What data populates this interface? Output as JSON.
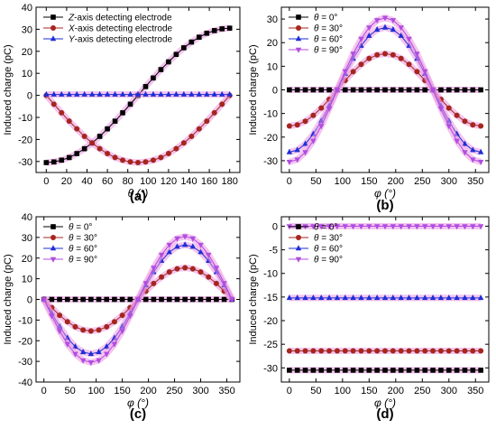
{
  "chart_data": [
    {
      "panel": "(a)",
      "type": "line",
      "xlabel": "θ (°)",
      "ylabel": "Induced charge (pC)",
      "xlim": [
        -10,
        190
      ],
      "ylim": [
        -35,
        40
      ],
      "xticks": [
        0,
        20,
        40,
        60,
        80,
        100,
        120,
        140,
        160,
        180
      ],
      "yticks": [
        -30,
        -20,
        -10,
        0,
        10,
        20,
        30,
        40
      ],
      "legend_position": "top-left",
      "grid": false,
      "x": [
        0,
        7.5,
        15,
        22.5,
        30,
        37.5,
        45,
        52.5,
        60,
        67.5,
        75,
        82.5,
        90,
        97.5,
        105,
        112.5,
        120,
        127.5,
        135,
        142.5,
        150,
        157.5,
        165,
        172.5,
        180
      ],
      "series": [
        {
          "name_prefix": "Z",
          "name_suffix": "-axis detecting electrode",
          "color": "#000000",
          "marker": "square",
          "values": [
            -30.5,
            -30.2,
            -29.4,
            -28.2,
            -26.4,
            -24.2,
            -21.6,
            -18.6,
            -15.2,
            -11.7,
            -7.9,
            -4.0,
            0.0,
            4.0,
            7.9,
            11.7,
            15.2,
            18.6,
            21.6,
            24.2,
            26.4,
            28.2,
            29.4,
            30.2,
            30.5
          ]
        },
        {
          "name_prefix": "X",
          "name_suffix": "-axis detecting electrode",
          "color": "#a5261e",
          "marker": "circle",
          "values": [
            0.0,
            -4.0,
            -7.9,
            -11.7,
            -15.2,
            -18.6,
            -21.6,
            -24.2,
            -26.4,
            -28.2,
            -29.4,
            -30.2,
            -30.5,
            -30.2,
            -29.4,
            -28.2,
            -26.4,
            -24.2,
            -21.6,
            -18.6,
            -15.2,
            -11.7,
            -7.9,
            -4.0,
            0.0
          ]
        },
        {
          "name_prefix": "Y",
          "name_suffix": "-axis detecting electrode",
          "color": "#1f2ed6",
          "marker": "triangle",
          "values": [
            0.4,
            0.4,
            0.4,
            0.4,
            0.4,
            0.4,
            0.4,
            0.4,
            0.4,
            0.4,
            0.4,
            0.4,
            0.4,
            0.4,
            0.4,
            0.4,
            0.4,
            0.4,
            0.4,
            0.4,
            0.4,
            0.4,
            0.4,
            0.4,
            0.4
          ]
        }
      ]
    },
    {
      "panel": "(b)",
      "type": "line",
      "xlabel": "φ (°)",
      "ylabel": "Induced charge (pC)",
      "xlim": [
        -15,
        375
      ],
      "ylim": [
        -35,
        35
      ],
      "xticks": [
        0,
        50,
        100,
        150,
        200,
        250,
        300,
        350
      ],
      "yticks": [
        -30,
        -20,
        -10,
        0,
        10,
        20,
        30
      ],
      "legend_position": "top-left",
      "grid": false,
      "x": [
        0,
        15,
        30,
        45,
        60,
        75,
        90,
        105,
        120,
        135,
        150,
        165,
        180,
        195,
        210,
        225,
        240,
        255,
        270,
        285,
        300,
        315,
        330,
        345,
        360
      ],
      "series": [
        {
          "name_prefix": "θ",
          "name_suffix": " = 0°",
          "color": "#000000",
          "marker": "square",
          "values": [
            0,
            0,
            0,
            0,
            0,
            0,
            0,
            0,
            0,
            0,
            0,
            0,
            0,
            0,
            0,
            0,
            0,
            0,
            0,
            0,
            0,
            0,
            0,
            0,
            0
          ]
        },
        {
          "name_prefix": "θ",
          "name_suffix": " = 30°",
          "color": "#a5261e",
          "marker": "circle",
          "values": [
            -15.3,
            -14.8,
            -13.3,
            -10.8,
            -7.7,
            -4.0,
            0.0,
            4.0,
            7.7,
            10.8,
            13.3,
            14.8,
            15.3,
            14.8,
            13.3,
            10.8,
            7.7,
            4.0,
            0.0,
            -4.0,
            -7.7,
            -10.8,
            -13.3,
            -14.8,
            -15.3
          ]
        },
        {
          "name_prefix": "θ",
          "name_suffix": " = 60°",
          "color": "#1f2ed6",
          "marker": "triangle",
          "values": [
            -26.4,
            -25.5,
            -22.9,
            -18.7,
            -13.2,
            -6.8,
            0.0,
            6.8,
            13.2,
            18.7,
            22.9,
            25.5,
            26.4,
            25.5,
            22.9,
            18.7,
            13.2,
            6.8,
            0.0,
            -6.8,
            -13.2,
            -18.7,
            -22.9,
            -25.5,
            -26.4
          ]
        },
        {
          "name_prefix": "θ",
          "name_suffix": " = 90°",
          "color": "#b04de0",
          "marker": "triangle-down",
          "values": [
            -30.5,
            -29.5,
            -26.4,
            -21.6,
            -15.3,
            -7.9,
            0.0,
            7.9,
            15.3,
            21.6,
            26.4,
            29.5,
            30.5,
            29.5,
            26.4,
            21.6,
            15.3,
            7.9,
            0.0,
            -7.9,
            -15.3,
            -21.6,
            -26.4,
            -29.5,
            -30.5
          ]
        }
      ]
    },
    {
      "panel": "(c)",
      "type": "line",
      "xlabel": "φ (°)",
      "ylabel": "Induced charge (pC)",
      "xlim": [
        -15,
        375
      ],
      "ylim": [
        -40,
        40
      ],
      "xticks": [
        0,
        50,
        100,
        150,
        200,
        250,
        300,
        350
      ],
      "yticks": [
        -40,
        -30,
        -20,
        -10,
        0,
        10,
        20,
        30,
        40
      ],
      "legend_position": "top-left",
      "grid": false,
      "x": [
        0,
        15,
        30,
        45,
        60,
        75,
        90,
        105,
        120,
        135,
        150,
        165,
        180,
        195,
        210,
        225,
        240,
        255,
        270,
        285,
        300,
        315,
        330,
        345,
        360
      ],
      "series": [
        {
          "name_prefix": "θ",
          "name_suffix": " = 0°",
          "color": "#000000",
          "marker": "square",
          "values": [
            0,
            0,
            0,
            0,
            0,
            0,
            0,
            0,
            0,
            0,
            0,
            0,
            0,
            0,
            0,
            0,
            0,
            0,
            0,
            0,
            0,
            0,
            0,
            0,
            0
          ]
        },
        {
          "name_prefix": "θ",
          "name_suffix": " = 30°",
          "color": "#a5261e",
          "marker": "circle",
          "values": [
            0.0,
            -4.0,
            -7.7,
            -10.8,
            -13.3,
            -14.8,
            -15.3,
            -14.8,
            -13.3,
            -10.8,
            -7.7,
            -4.0,
            0.0,
            4.0,
            7.7,
            10.8,
            13.3,
            14.8,
            15.3,
            14.8,
            13.3,
            10.8,
            7.7,
            4.0,
            0.0
          ]
        },
        {
          "name_prefix": "θ",
          "name_suffix": " = 60°",
          "color": "#1f2ed6",
          "marker": "triangle",
          "values": [
            0.0,
            -6.8,
            -13.2,
            -18.7,
            -22.9,
            -25.5,
            -26.4,
            -25.5,
            -22.9,
            -18.7,
            -13.2,
            -6.8,
            0.0,
            6.8,
            13.2,
            18.7,
            22.9,
            25.5,
            26.4,
            25.5,
            22.9,
            18.7,
            13.2,
            6.8,
            0.0
          ]
        },
        {
          "name_prefix": "θ",
          "name_suffix": " = 90°",
          "color": "#b04de0",
          "marker": "triangle-down",
          "values": [
            0.0,
            -7.9,
            -15.3,
            -21.6,
            -26.4,
            -29.5,
            -30.5,
            -29.5,
            -26.4,
            -21.6,
            -15.3,
            -7.9,
            0.0,
            7.9,
            15.3,
            21.6,
            26.4,
            29.5,
            30.5,
            29.5,
            26.4,
            21.6,
            15.3,
            7.9,
            0.0
          ]
        }
      ]
    },
    {
      "panel": "(d)",
      "type": "line",
      "xlabel": "φ (°)",
      "ylabel": "Induced charge (pC)",
      "xlim": [
        -15,
        375
      ],
      "ylim": [
        -33,
        2
      ],
      "xticks": [
        0,
        50,
        100,
        150,
        200,
        250,
        300,
        350
      ],
      "yticks": [
        -30,
        -25,
        -20,
        -15,
        -10,
        -5,
        0
      ],
      "legend_position": "top-left",
      "grid": false,
      "x": [
        0,
        15,
        30,
        45,
        60,
        75,
        90,
        105,
        120,
        135,
        150,
        165,
        180,
        195,
        210,
        225,
        240,
        255,
        270,
        285,
        300,
        315,
        330,
        345,
        360
      ],
      "series": [
        {
          "name_prefix": "θ",
          "name_suffix": " = 0°",
          "color": "#000000",
          "marker": "square",
          "values": [
            -30.5,
            -30.5,
            -30.5,
            -30.5,
            -30.5,
            -30.5,
            -30.5,
            -30.5,
            -30.5,
            -30.5,
            -30.5,
            -30.5,
            -30.5,
            -30.5,
            -30.5,
            -30.5,
            -30.5,
            -30.5,
            -30.5,
            -30.5,
            -30.5,
            -30.5,
            -30.5,
            -30.5,
            -30.5
          ]
        },
        {
          "name_prefix": "θ",
          "name_suffix": " = 30°",
          "color": "#a5261e",
          "marker": "circle",
          "values": [
            -26.4,
            -26.4,
            -26.4,
            -26.4,
            -26.4,
            -26.4,
            -26.4,
            -26.4,
            -26.4,
            -26.4,
            -26.4,
            -26.4,
            -26.4,
            -26.4,
            -26.4,
            -26.4,
            -26.4,
            -26.4,
            -26.4,
            -26.4,
            -26.4,
            -26.4,
            -26.4,
            -26.4,
            -26.4
          ]
        },
        {
          "name_prefix": "θ",
          "name_suffix": " = 60°",
          "color": "#1f2ed6",
          "marker": "triangle",
          "values": [
            -15.2,
            -15.2,
            -15.2,
            -15.2,
            -15.2,
            -15.2,
            -15.2,
            -15.2,
            -15.2,
            -15.2,
            -15.2,
            -15.2,
            -15.2,
            -15.2,
            -15.2,
            -15.2,
            -15.2,
            -15.2,
            -15.2,
            -15.2,
            -15.2,
            -15.2,
            -15.2,
            -15.2,
            -15.2
          ]
        },
        {
          "name_prefix": "θ",
          "name_suffix": " = 90°",
          "color": "#b04de0",
          "marker": "triangle-down",
          "values": [
            0,
            0,
            0,
            0,
            0,
            0,
            0,
            0,
            0,
            0,
            0,
            0,
            0,
            0,
            0,
            0,
            0,
            0,
            0,
            0,
            0,
            0,
            0,
            0,
            0
          ]
        }
      ]
    }
  ]
}
